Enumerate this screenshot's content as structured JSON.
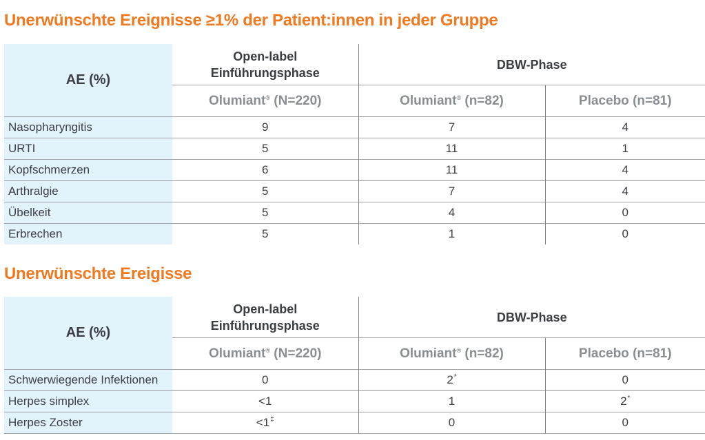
{
  "table1": {
    "title": "Unerwünschte Ereignisse ≥1% der Patient:innen in jeder Gruppe",
    "header": {
      "ae": "AE (%)",
      "open_label_line1": "Open-label",
      "open_label_line2": "Einführungsphase",
      "dbw": "DBW-Phase",
      "col1": "Olumiant",
      "col1_mark": "®",
      "col1_n": " (N=220)",
      "col2": "Olumiant",
      "col2_mark": "®",
      "col2_n": " (n=82)",
      "col3": "Placebo (n=81)"
    },
    "rows": [
      {
        "label": "Nasopharyngitis",
        "v1": "9",
        "v2": "7",
        "v3": "4"
      },
      {
        "label": "URTI",
        "v1": "5",
        "v2": "11",
        "v3": "1"
      },
      {
        "label": "Kopfschmerzen",
        "v1": "6",
        "v2": "11",
        "v3": "4"
      },
      {
        "label": "Arthralgie",
        "v1": "5",
        "v2": "7",
        "v3": "4"
      },
      {
        "label": "Übelkeit",
        "v1": "5",
        "v2": "4",
        "v3": "0"
      },
      {
        "label": "Erbrechen",
        "v1": "5",
        "v2": "1",
        "v3": "0"
      }
    ]
  },
  "table2": {
    "title": "Unerwünschte Ereigisse",
    "header": {
      "ae": "AE (%)",
      "open_label_line1": "Open-label",
      "open_label_line2": "Einführungsphase",
      "dbw": "DBW-Phase",
      "col1": "Olumiant",
      "col1_mark": "®",
      "col1_n": " (N=220)",
      "col2": "Olumiant",
      "col2_mark": "®",
      "col2_n": " (n=82)",
      "col3": "Placebo (n=81)"
    },
    "rows": [
      {
        "label": "Schwerwiegende Infektionen",
        "v1": "0",
        "v2": "2",
        "v2_fn": "*",
        "v3": "0"
      },
      {
        "label": "Herpes simplex",
        "v1": "<1",
        "v2": "1",
        "v3": "2",
        "v3_fn": "*"
      },
      {
        "label": "Herpes Zoster",
        "v1": "<1",
        "v1_fn": "‡",
        "v2": "0",
        "v3": "0"
      }
    ]
  }
}
